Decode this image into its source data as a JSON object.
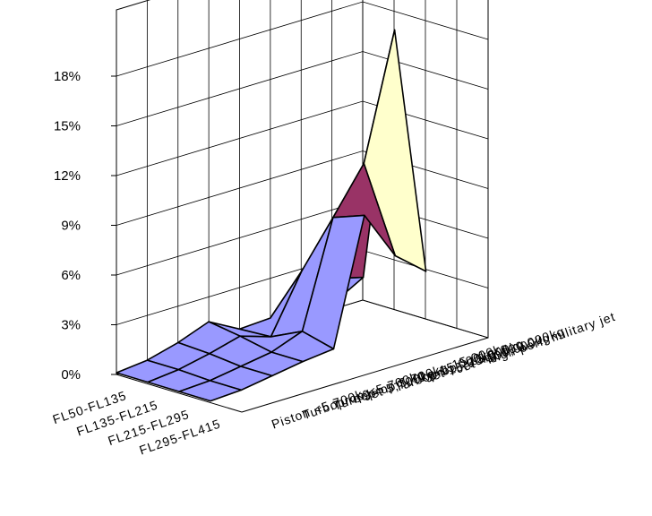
{
  "chart_data": {
    "type": "surface",
    "title": "",
    "z_ticks": [
      "0%",
      "3%",
      "6%",
      "9%",
      "12%",
      "15%",
      "18%"
    ],
    "zlim": [
      0,
      18
    ],
    "z_unit": "%",
    "x_categories": [
      "FL50-FL135",
      "FL135-FL215",
      "FL215-FL295",
      "FL295-FL415"
    ],
    "y_categories": [
      "Piston <5,700kg",
      "Turboprop <5,700kg",
      "Turboprop 5,700kg-15,000kg",
      "Jet 5,700kg-15,000kg",
      "Turboprop >15,000kg",
      "Jet 15,00kg-100,000kg",
      "Jet >100,000kg",
      "High perf. military jet"
    ],
    "values": [
      [
        0.1,
        0.3,
        0.8,
        1.5,
        0.5,
        0.6,
        0.4,
        0.3
      ],
      [
        0.1,
        0.3,
        0.7,
        1.2,
        0.6,
        4.0,
        3.0,
        2.5
      ],
      [
        0.1,
        0.2,
        0.5,
        0.8,
        1.5,
        7.8,
        10.5,
        18.0
      ],
      [
        0.1,
        0.2,
        0.5,
        0.8,
        1.0,
        8.5,
        5.5,
        4.0
      ]
    ],
    "band_colors": [
      "#9999ff",
      "#9999ff",
      "#993366",
      "#ffffcc",
      "#ccffff",
      "#660066",
      "#ff8080"
    ],
    "grid": true
  }
}
